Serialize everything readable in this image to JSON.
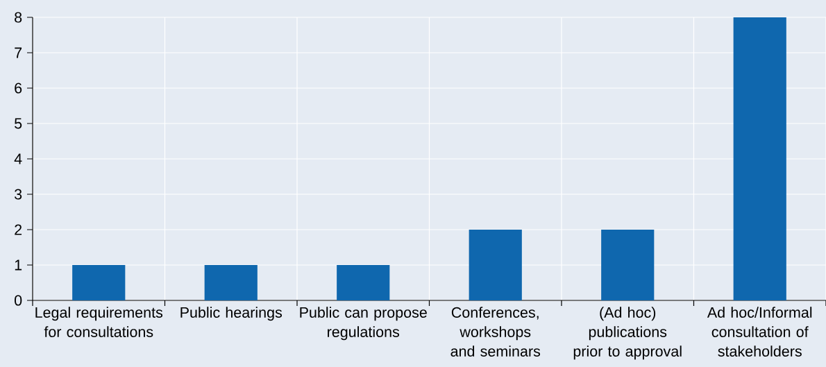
{
  "chart_data": {
    "type": "bar",
    "categories": [
      "Legal requirements for consultations",
      "Public hearings",
      "Public can propose regulations",
      "Conferences, workshops and seminars",
      "(Ad hoc) publications prior to approval",
      "Ad hoc/Informal consultation of stakeholders"
    ],
    "values": [
      1,
      1,
      1,
      2,
      2,
      8
    ],
    "color": "#0f67ae",
    "ylim": [
      0,
      8
    ],
    "yticks": [
      0,
      1,
      2,
      3,
      4,
      5,
      6,
      7,
      8
    ],
    "grid": true
  }
}
